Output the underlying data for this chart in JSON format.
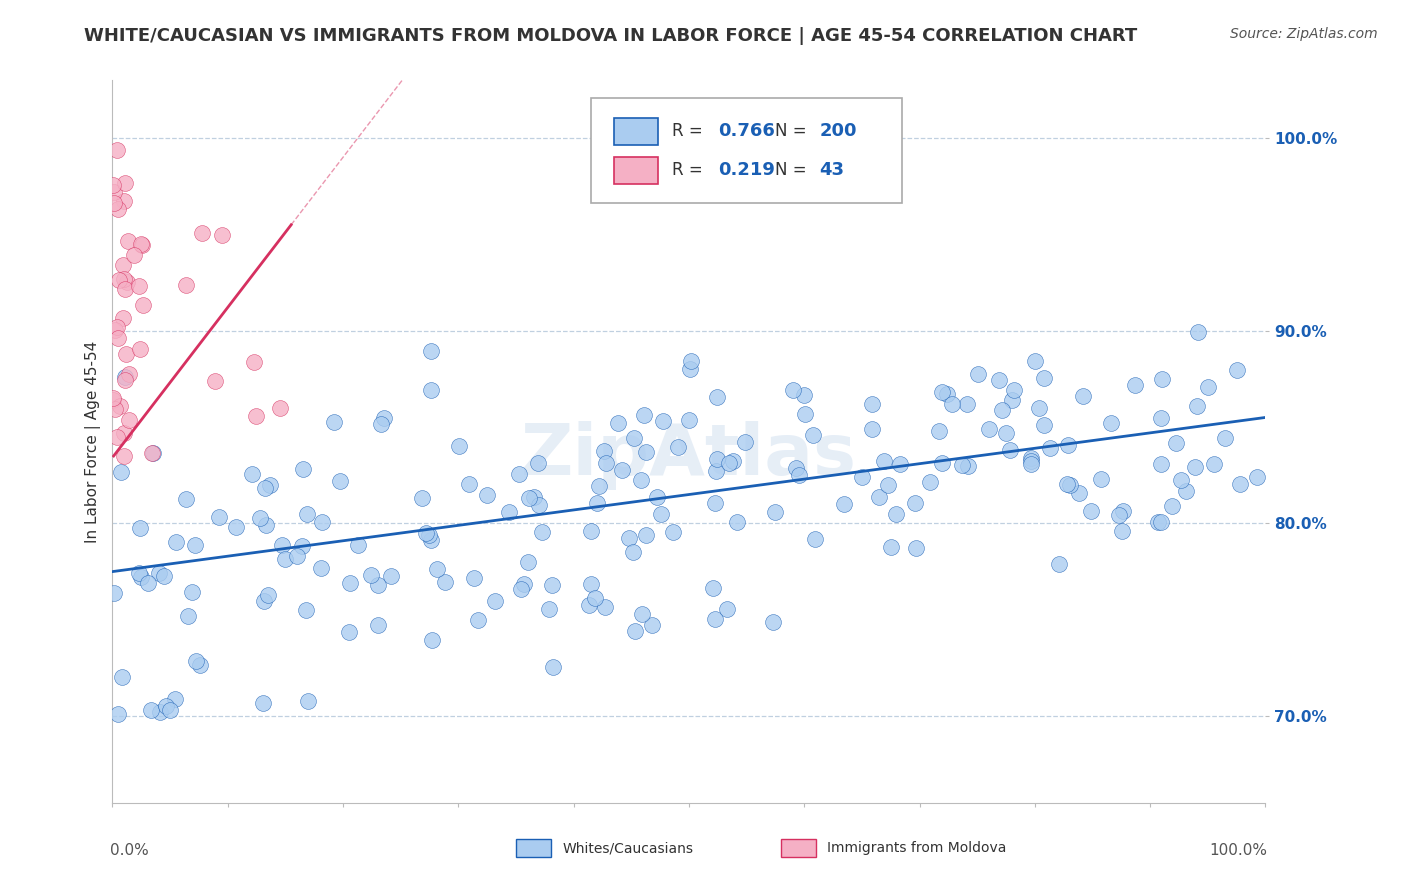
{
  "title": "WHITE/CAUCASIAN VS IMMIGRANTS FROM MOLDOVA IN LABOR FORCE | AGE 45-54 CORRELATION CHART",
  "source": "Source: ZipAtlas.com",
  "ylabel": "In Labor Force | Age 45-54",
  "yticks_labels": [
    "70.0%",
    "80.0%",
    "90.0%",
    "100.0%"
  ],
  "ytick_values": [
    0.7,
    0.8,
    0.9,
    1.0
  ],
  "xlim": [
    0.0,
    1.0
  ],
  "ylim": [
    0.655,
    1.03
  ],
  "blue_R": 0.766,
  "blue_N": 200,
  "pink_R": 0.219,
  "pink_N": 43,
  "blue_dot_color": "#aaccf0",
  "pink_dot_color": "#f5b0c5",
  "blue_line_color": "#1a5fb4",
  "pink_line_color": "#d63060",
  "legend_label_blue": "Whites/Caucasians",
  "legend_label_pink": "Immigrants from Moldova",
  "watermark": "ZipAtlas",
  "background_color": "#ffffff",
  "grid_color": "#c0d0e0",
  "title_fontsize": 13,
  "axis_label_fontsize": 11,
  "tick_fontsize": 11,
  "source_fontsize": 10,
  "legend_text_color": "#1a5fb4",
  "blue_line_start_y": 0.775,
  "blue_line_end_y": 0.855,
  "pink_line_start_x": 0.001,
  "pink_line_start_y": 0.835,
  "pink_line_end_x": 0.155,
  "pink_line_end_y": 0.955
}
